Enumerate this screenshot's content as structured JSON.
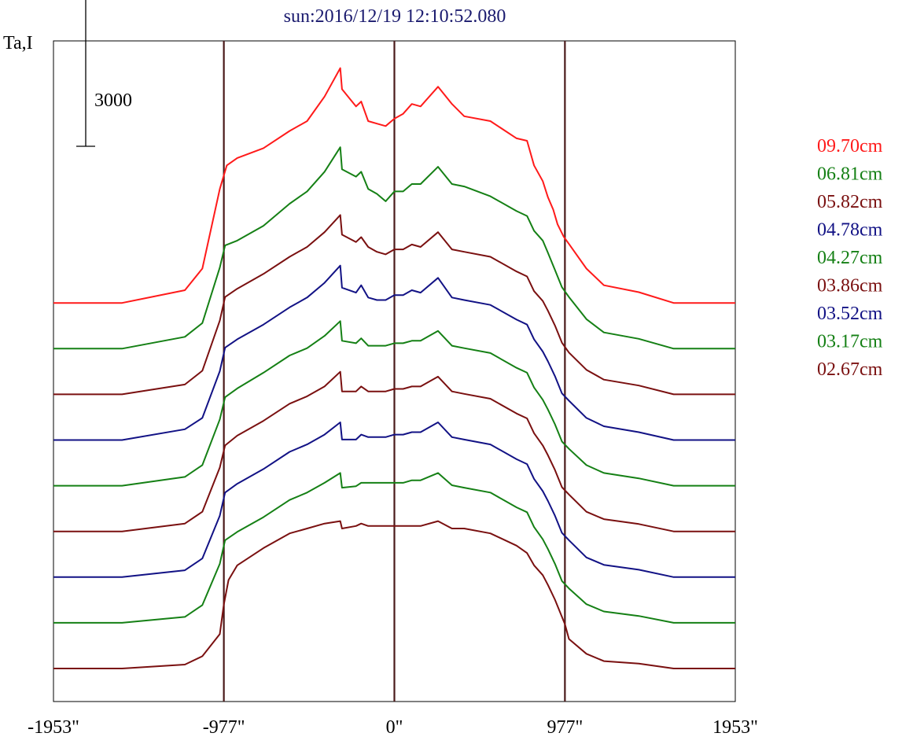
{
  "chart_data": {
    "type": "line",
    "title": "sun:2016/12/19 12:10:52.080",
    "ylabel": "Ta,I",
    "scale_bar_label": "3000",
    "x_ticks": [
      "-1953\"",
      "-977\"",
      "0\"",
      "977\"",
      "1953\""
    ],
    "xlim": [
      -1953,
      1953
    ],
    "vertical_lines_at": [
      -977,
      0,
      977
    ],
    "vertical_line_color": "#4a1a1a",
    "scale_bar_value": 3000,
    "y_units_per_offset_step": 930,
    "title_color": "#1a1a6e",
    "series": [
      {
        "name": "09.70cm",
        "color": "#ff1a1a",
        "offset": 8,
        "x": [
          -1953,
          -1560,
          -1200,
          -1100,
          -1000,
          -960,
          -900,
          -750,
          -600,
          -500,
          -400,
          -310,
          -300,
          -220,
          -190,
          -150,
          -100,
          -50,
          0,
          50,
          100,
          150,
          250,
          330,
          400,
          550,
          700,
          760,
          800,
          850,
          880,
          910,
          935,
          970,
          1000,
          1100,
          1200,
          1400,
          1600,
          1953
        ],
        "y": [
          0,
          0,
          260,
          700,
          2320,
          2800,
          2950,
          3150,
          3500,
          3700,
          4200,
          4780,
          4350,
          4000,
          4100,
          3700,
          3650,
          3600,
          3750,
          3850,
          4050,
          4000,
          4400,
          4050,
          3800,
          3700,
          3350,
          3300,
          2800,
          2480,
          2150,
          1900,
          1600,
          1350,
          1200,
          700,
          360,
          220,
          0,
          0
        ]
      },
      {
        "name": "06.81cm",
        "color": "#158015",
        "offset": 7,
        "x": [
          -1953,
          -1560,
          -1200,
          -1100,
          -1000,
          -970,
          -900,
          -750,
          -600,
          -500,
          -400,
          -310,
          -300,
          -220,
          -190,
          -150,
          -100,
          -50,
          0,
          50,
          100,
          150,
          250,
          330,
          400,
          550,
          700,
          760,
          800,
          850,
          880,
          920,
          960,
          1000,
          1100,
          1200,
          1400,
          1600,
          1953
        ],
        "y": [
          0,
          0,
          240,
          520,
          1650,
          2100,
          2200,
          2500,
          2950,
          3200,
          3600,
          4100,
          3650,
          3500,
          3600,
          3250,
          3150,
          3000,
          3200,
          3200,
          3350,
          3350,
          3700,
          3350,
          3300,
          3100,
          2800,
          2700,
          2400,
          2200,
          1950,
          1600,
          1250,
          1050,
          600,
          330,
          200,
          0,
          0
        ]
      },
      {
        "name": "05.82cm",
        "color": "#7a1010",
        "offset": 6,
        "x": [
          -1953,
          -1560,
          -1200,
          -1100,
          -1000,
          -970,
          -900,
          -750,
          -600,
          -500,
          -400,
          -310,
          -300,
          -220,
          -190,
          -150,
          -100,
          -50,
          0,
          50,
          100,
          150,
          250,
          330,
          400,
          550,
          700,
          760,
          800,
          850,
          880,
          920,
          960,
          1000,
          1100,
          1200,
          1400,
          1600,
          1953
        ],
        "y": [
          0,
          0,
          200,
          480,
          1500,
          1980,
          2150,
          2450,
          2800,
          3000,
          3300,
          3650,
          3250,
          3100,
          3200,
          3000,
          2900,
          2850,
          2950,
          2950,
          3050,
          3000,
          3300,
          2950,
          2900,
          2800,
          2500,
          2400,
          2100,
          1900,
          1700,
          1400,
          1050,
          850,
          500,
          300,
          180,
          0,
          0
        ]
      },
      {
        "name": "04.78cm",
        "color": "#121285",
        "offset": 5,
        "x": [
          -1953,
          -1560,
          -1200,
          -1100,
          -1000,
          -970,
          -900,
          -750,
          -600,
          -500,
          -400,
          -310,
          -300,
          -220,
          -190,
          -150,
          -100,
          -50,
          0,
          50,
          100,
          150,
          250,
          330,
          400,
          550,
          700,
          760,
          800,
          850,
          880,
          920,
          960,
          1000,
          1100,
          1200,
          1400,
          1600,
          1953
        ],
        "y": [
          0,
          0,
          220,
          450,
          1400,
          1880,
          2050,
          2350,
          2700,
          2900,
          3200,
          3550,
          3100,
          3000,
          3150,
          2900,
          2850,
          2850,
          2950,
          2950,
          3050,
          3000,
          3300,
          2900,
          2850,
          2750,
          2450,
          2350,
          2050,
          1800,
          1600,
          1300,
          950,
          800,
          450,
          280,
          160,
          0,
          0
        ]
      },
      {
        "name": "04.27cm",
        "color": "#158015",
        "offset": 4,
        "x": [
          -1953,
          -1560,
          -1200,
          -1100,
          -1000,
          -970,
          -900,
          -750,
          -600,
          -500,
          -400,
          -310,
          -300,
          -220,
          -190,
          -150,
          -100,
          -50,
          0,
          50,
          100,
          150,
          250,
          330,
          400,
          550,
          700,
          760,
          800,
          850,
          880,
          920,
          960,
          1000,
          1100,
          1200,
          1400,
          1600,
          1953
        ],
        "y": [
          0,
          0,
          180,
          420,
          1350,
          1800,
          1980,
          2300,
          2650,
          2800,
          3050,
          3350,
          2950,
          2900,
          3000,
          2850,
          2850,
          2850,
          2900,
          2900,
          2950,
          2950,
          3150,
          2850,
          2800,
          2700,
          2400,
          2300,
          2000,
          1750,
          1550,
          1250,
          900,
          750,
          420,
          260,
          150,
          0,
          0
        ]
      },
      {
        "name": "03.86cm",
        "color": "#7a1010",
        "offset": 3,
        "x": [
          -1953,
          -1560,
          -1200,
          -1100,
          -1000,
          -970,
          -900,
          -750,
          -600,
          -500,
          -400,
          -310,
          -300,
          -220,
          -190,
          -150,
          -100,
          -50,
          0,
          50,
          100,
          150,
          250,
          330,
          400,
          550,
          700,
          760,
          800,
          850,
          880,
          920,
          960,
          1000,
          1100,
          1200,
          1400,
          1600,
          1953
        ],
        "y": [
          0,
          0,
          160,
          400,
          1300,
          1750,
          1950,
          2250,
          2600,
          2750,
          2950,
          3250,
          2850,
          2850,
          2950,
          2850,
          2850,
          2850,
          2900,
          2900,
          2950,
          2950,
          3150,
          2850,
          2800,
          2700,
          2400,
          2300,
          2000,
          1750,
          1550,
          1250,
          900,
          750,
          400,
          250,
          150,
          0,
          0
        ]
      },
      {
        "name": "03.52cm",
        "color": "#121285",
        "offset": 2,
        "x": [
          -1953,
          -1560,
          -1200,
          -1100,
          -1000,
          -970,
          -900,
          -750,
          -600,
          -500,
          -400,
          -310,
          -300,
          -220,
          -190,
          -150,
          -100,
          -50,
          0,
          50,
          100,
          150,
          250,
          330,
          400,
          550,
          700,
          760,
          800,
          850,
          880,
          920,
          960,
          1000,
          1100,
          1200,
          1400,
          1600,
          1953
        ],
        "y": [
          0,
          0,
          140,
          380,
          1250,
          1720,
          1900,
          2200,
          2550,
          2700,
          2900,
          3150,
          2800,
          2800,
          2900,
          2850,
          2850,
          2850,
          2900,
          2900,
          2950,
          2950,
          3150,
          2850,
          2800,
          2700,
          2400,
          2300,
          2000,
          1750,
          1550,
          1250,
          900,
          750,
          400,
          250,
          150,
          0,
          0
        ]
      },
      {
        "name": "03.17cm",
        "color": "#158015",
        "offset": 1,
        "x": [
          -1953,
          -1560,
          -1200,
          -1100,
          -1000,
          -970,
          -900,
          -750,
          -600,
          -500,
          -400,
          -310,
          -300,
          -220,
          -190,
          -150,
          -100,
          -50,
          0,
          50,
          100,
          150,
          250,
          330,
          400,
          550,
          700,
          760,
          800,
          850,
          880,
          920,
          960,
          1000,
          1100,
          1200,
          1400,
          1600,
          1953
        ],
        "y": [
          0,
          0,
          120,
          360,
          1200,
          1680,
          1850,
          2150,
          2500,
          2650,
          2850,
          3050,
          2750,
          2780,
          2850,
          2850,
          2850,
          2850,
          2850,
          2850,
          2900,
          2900,
          3050,
          2800,
          2750,
          2650,
          2350,
          2250,
          1950,
          1700,
          1500,
          1200,
          850,
          700,
          380,
          230,
          140,
          0,
          0
        ]
      },
      {
        "name": "02.67cm",
        "color": "#7a1010",
        "offset": 0,
        "x": [
          -1953,
          -1560,
          -1200,
          -1100,
          -1000,
          -977,
          -950,
          -900,
          -750,
          -600,
          -500,
          -400,
          -310,
          -300,
          -220,
          -190,
          -150,
          -100,
          -50,
          0,
          50,
          100,
          150,
          250,
          330,
          400,
          550,
          700,
          760,
          800,
          850,
          880,
          920,
          960,
          977,
          1000,
          1100,
          1200,
          1400,
          1600,
          1953
        ],
        "y": [
          0,
          0,
          80,
          250,
          700,
          1300,
          1800,
          2100,
          2450,
          2750,
          2850,
          2950,
          3000,
          2850,
          2900,
          2950,
          2900,
          2900,
          2900,
          2900,
          2900,
          2900,
          2900,
          3000,
          2850,
          2850,
          2750,
          2500,
          2350,
          2100,
          1900,
          1700,
          1400,
          1050,
          900,
          600,
          300,
          150,
          100,
          0,
          0
        ]
      }
    ]
  }
}
